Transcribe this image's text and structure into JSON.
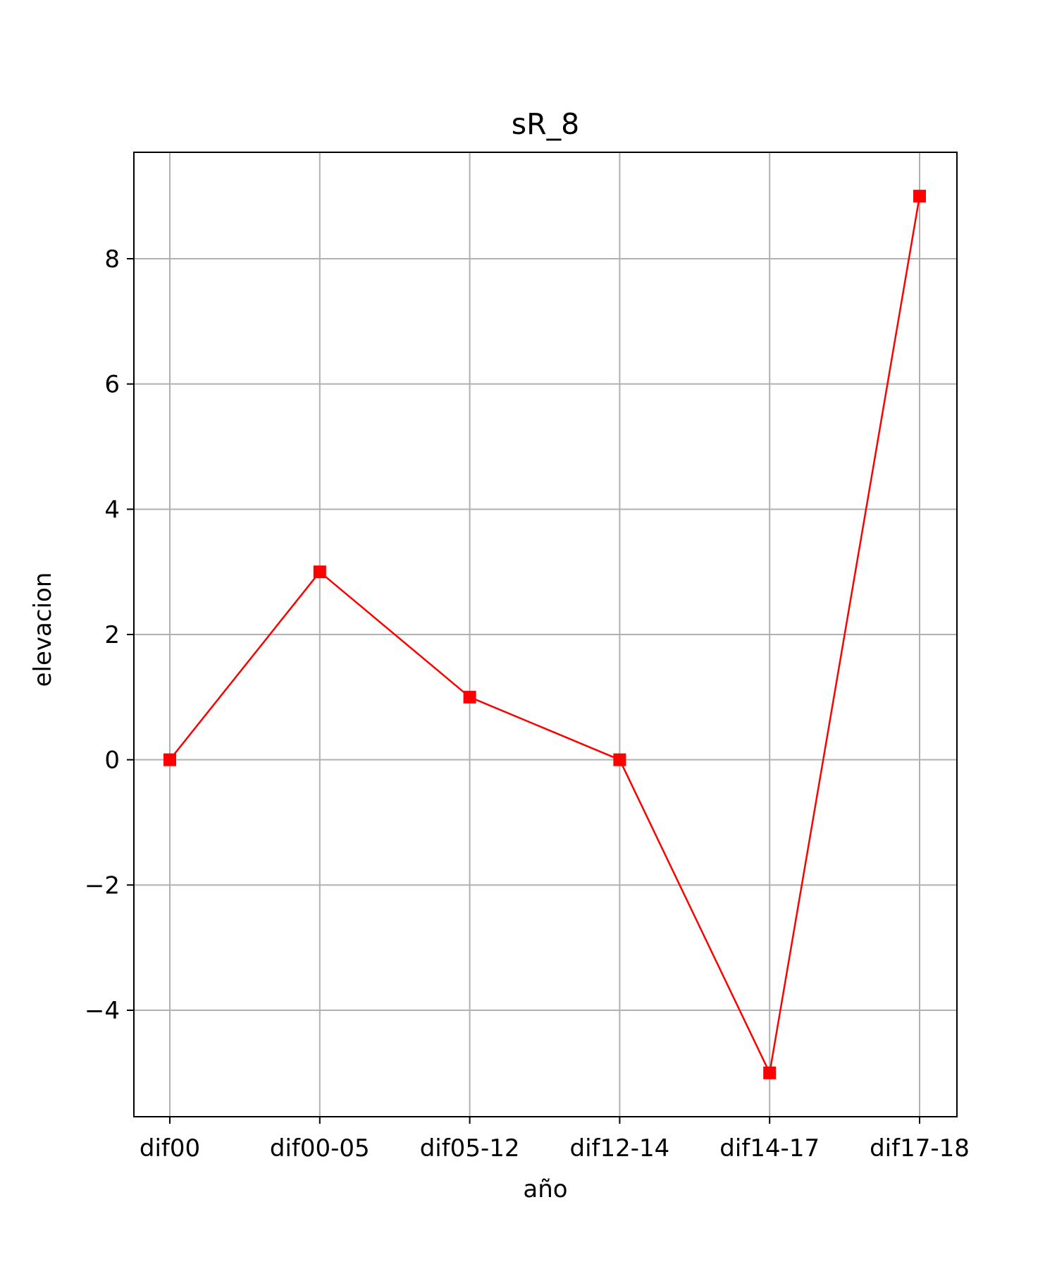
{
  "chart_data": {
    "type": "line",
    "title": "sR_8",
    "xlabel": "año",
    "ylabel": "elevacion",
    "categories": [
      "dif00",
      "dif00-05",
      "dif05-12",
      "dif12-14",
      "dif14-17",
      "dif17-18"
    ],
    "series": [
      {
        "values": [
          0,
          3,
          1,
          0,
          -5,
          9
        ],
        "color": "#ff0000",
        "marker": "square"
      }
    ],
    "ylim": [
      -5.7,
      9.7
    ],
    "yticks": [
      -4,
      -2,
      0,
      2,
      4,
      6,
      8
    ],
    "ytick_labels": [
      "−4",
      "−2",
      "0",
      "2",
      "4",
      "6",
      "8"
    ],
    "grid": true,
    "legend": "none"
  }
}
